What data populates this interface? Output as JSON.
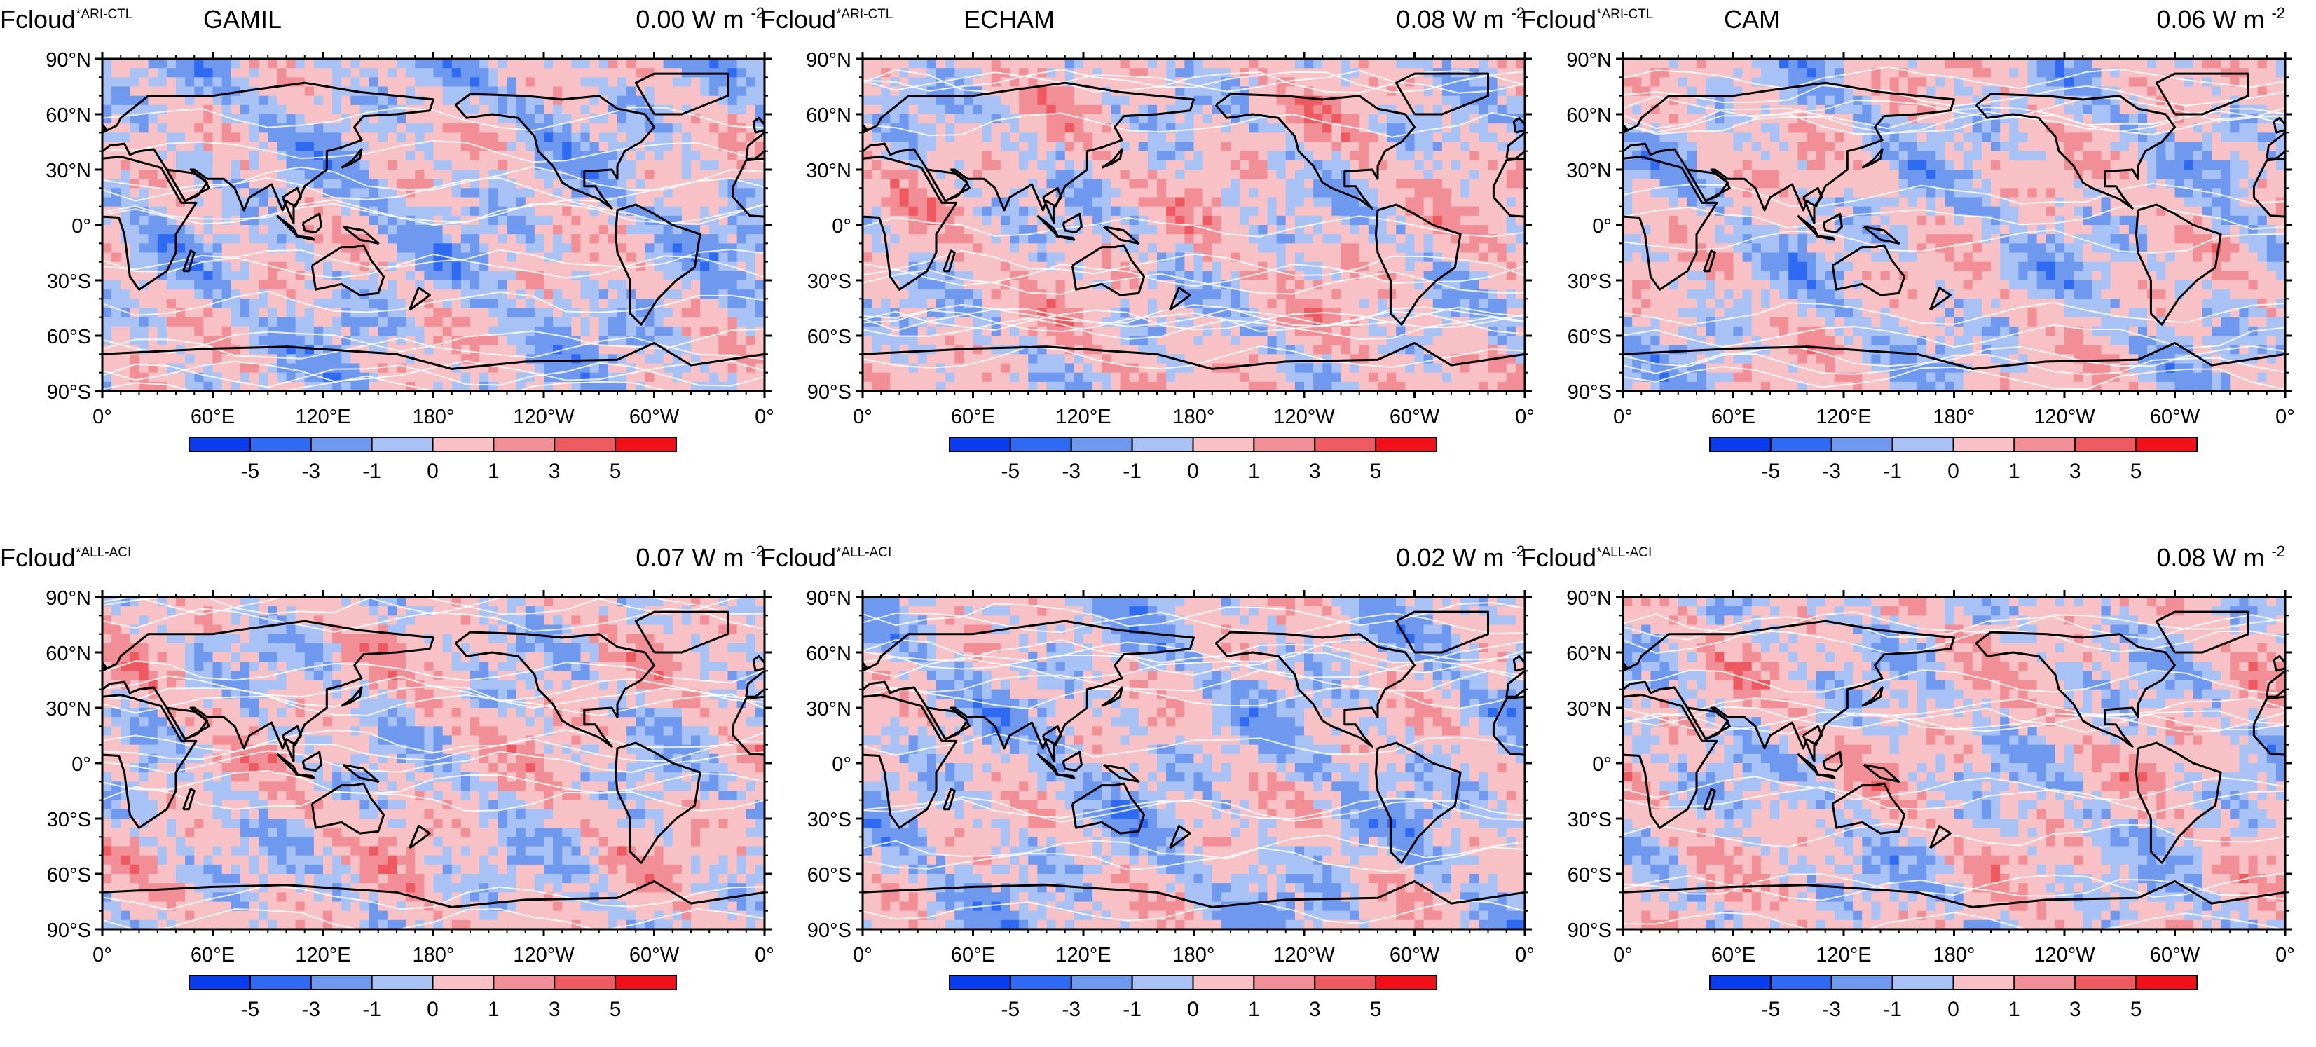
{
  "figure": {
    "colors": {
      "bins": [
        "#0a3cf0",
        "#2f6bf2",
        "#6f98ef",
        "#a9c2f5",
        "#f7c1c5",
        "#f28f96",
        "#ee5a5f",
        "#f2111a"
      ],
      "land_outline": "#000000",
      "contour_line": "#ffffff",
      "frame": "#000000"
    },
    "icons": {
      "mean": "ocean-anomaly-field"
    }
  },
  "chart_data": [
    {
      "type": "heatmap",
      "variable": "Fcloud",
      "superscript": "ARI-CTL",
      "model": "GAMIL",
      "global_mean_value": "0.00",
      "global_mean_unit": "W m",
      "unit_exponent": "-2",
      "lat_ticks": [
        "90°N",
        "60°N",
        "30°N",
        "0°",
        "30°S",
        "60°S",
        "90°S"
      ],
      "lon_ticks": [
        "0°",
        "60°E",
        "120°E",
        "180°",
        "120°W",
        "60°W",
        "0°"
      ],
      "colorbar_levels": [
        "-5",
        "-3",
        "-1",
        "0",
        "1",
        "3",
        "5"
      ],
      "xlim": [
        0,
        360
      ],
      "ylim": [
        -90,
        90
      ],
      "field_sign_pattern": "mixed, predominantly light blue with light-red belts"
    },
    {
      "type": "heatmap",
      "variable": "Fcloud",
      "superscript": "ARI-CTL",
      "model": "ECHAM",
      "global_mean_value": "0.08",
      "global_mean_unit": "W m",
      "unit_exponent": "-2",
      "lat_ticks": [
        "90°N",
        "60°N",
        "30°N",
        "0°",
        "30°S",
        "60°S",
        "90°S"
      ],
      "lon_ticks": [
        "0°",
        "60°E",
        "120°E",
        "180°",
        "120°W",
        "60°W",
        "0°"
      ],
      "colorbar_levels": [
        "-5",
        "-3",
        "-1",
        "0",
        "1",
        "3",
        "5"
      ],
      "xlim": [
        0,
        360
      ],
      "ylim": [
        -90,
        90
      ],
      "field_sign_pattern": "mixed, predominantly light red"
    },
    {
      "type": "heatmap",
      "variable": "Fcloud",
      "superscript": "ARI-CTL",
      "model": "CAM",
      "global_mean_value": "0.06",
      "global_mean_unit": "W m",
      "unit_exponent": "-2",
      "lat_ticks": [
        "90°N",
        "60°N",
        "30°N",
        "0°",
        "30°S",
        "60°S",
        "90°S"
      ],
      "lon_ticks": [
        "0°",
        "60°E",
        "120°E",
        "180°",
        "120°W",
        "60°W",
        "0°"
      ],
      "colorbar_levels": [
        "-5",
        "-3",
        "-1",
        "0",
        "1",
        "3",
        "5"
      ],
      "xlim": [
        0,
        360
      ],
      "ylim": [
        -90,
        90
      ],
      "field_sign_pattern": "mixed, light red over continents and west Pacific"
    },
    {
      "type": "heatmap",
      "variable": "Fcloud",
      "superscript": "ALL-ACI",
      "model": "",
      "global_mean_value": "0.07",
      "global_mean_unit": "W m",
      "unit_exponent": "-2",
      "lat_ticks": [
        "90°N",
        "60°N",
        "30°N",
        "0°",
        "30°S",
        "60°S",
        "90°S"
      ],
      "lon_ticks": [
        "0°",
        "60°E",
        "120°E",
        "180°",
        "120°W",
        "60°W",
        "0°"
      ],
      "colorbar_levels": [
        "-5",
        "-3",
        "-1",
        "0",
        "1",
        "3",
        "5"
      ],
      "xlim": [
        0,
        360
      ],
      "ylim": [
        -90,
        90
      ],
      "field_sign_pattern": "mixed, predominantly light red"
    },
    {
      "type": "heatmap",
      "variable": "Fcloud",
      "superscript": "ALL-ACI",
      "model": "",
      "global_mean_value": "0.02",
      "global_mean_unit": "W m",
      "unit_exponent": "-2",
      "lat_ticks": [
        "90°N",
        "60°N",
        "30°N",
        "0°",
        "30°S",
        "60°S",
        "90°S"
      ],
      "lon_ticks": [
        "0°",
        "60°E",
        "120°E",
        "180°",
        "120°W",
        "60°W",
        "0°"
      ],
      "colorbar_levels": [
        "-5",
        "-3",
        "-1",
        "0",
        "1",
        "3",
        "5"
      ],
      "xlim": [
        0,
        360
      ],
      "ylim": [
        -90,
        90
      ],
      "field_sign_pattern": "mixed, blue in tropics"
    },
    {
      "type": "heatmap",
      "variable": "Fcloud",
      "superscript": "ALL-ACI",
      "model": "",
      "global_mean_value": "0.08",
      "global_mean_unit": "W m",
      "unit_exponent": "-2",
      "lat_ticks": [
        "90°N",
        "60°N",
        "30°N",
        "0°",
        "30°S",
        "60°S",
        "90°S"
      ],
      "lon_ticks": [
        "0°",
        "60°E",
        "120°E",
        "180°",
        "120°W",
        "60°W",
        "0°"
      ],
      "colorbar_levels": [
        "-5",
        "-3",
        "-1",
        "0",
        "1",
        "3",
        "5"
      ],
      "xlim": [
        0,
        360
      ],
      "ylim": [
        -90,
        90
      ],
      "field_sign_pattern": "mixed, light red belts"
    }
  ]
}
